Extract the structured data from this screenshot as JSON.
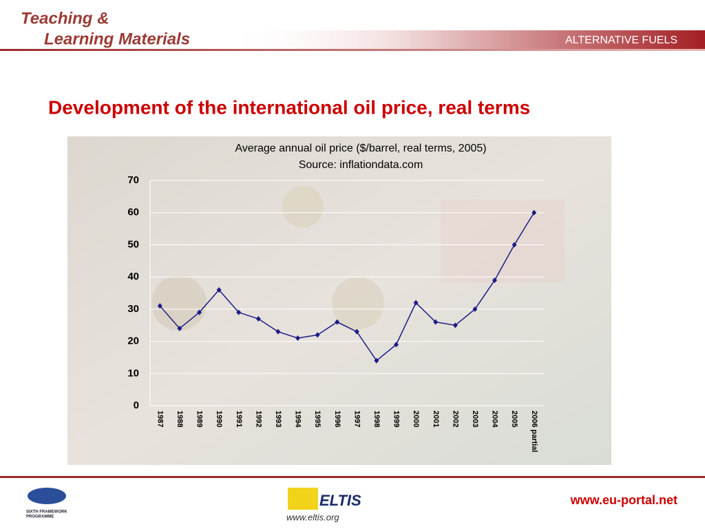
{
  "header": {
    "line1": "Teaching &",
    "line2": "Learning Materials",
    "topic": "ALTERNATIVE FUELS"
  },
  "slide_title": "Development of the international oil price, real terms",
  "footer": {
    "url": "www.eu-portal.net",
    "eltis": "ELTIS",
    "eltis_url": "www.eltis.org",
    "fp6": [
      "SIXTH FRAMEWORK",
      "PROGRAMME"
    ]
  },
  "chart_data": {
    "type": "line",
    "title": "Average annual oil price ($/barrel, real terms, 2005)",
    "subtitle": "Source: inflationdata.com",
    "categories": [
      "1987",
      "1988",
      "1989",
      "1990",
      "1991",
      "1992",
      "1993",
      "1994",
      "1995",
      "1996",
      "1997",
      "1998",
      "1999",
      "2000",
      "2001",
      "2002",
      "2003",
      "2004",
      "2005",
      "2006 partial"
    ],
    "series": [
      {
        "name": "Average annual oil price",
        "color": "#1c1c86",
        "values": [
          31,
          24,
          29,
          36,
          29,
          27,
          23,
          21,
          22,
          26,
          23,
          14,
          19,
          32,
          26,
          25,
          30,
          39,
          50,
          60
        ]
      }
    ],
    "ylim": [
      0,
      70
    ],
    "yticks": [
      0,
      10,
      20,
      30,
      40,
      50,
      60,
      70
    ],
    "grid": true
  }
}
